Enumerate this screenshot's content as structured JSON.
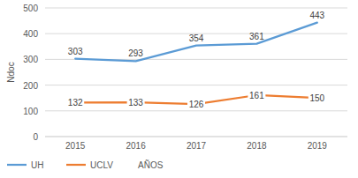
{
  "chart_data": {
    "type": "line",
    "categories": [
      "2015",
      "2016",
      "2017",
      "2018",
      "2019"
    ],
    "series": [
      {
        "name": "UH",
        "color": "#5b9bd5",
        "values": [
          303,
          293,
          354,
          361,
          443
        ]
      },
      {
        "name": "UCLV",
        "color": "#ed7d31",
        "values": [
          132,
          133,
          126,
          161,
          150
        ]
      }
    ],
    "y_label": "Ndoc",
    "x_label": "AÑOS",
    "ylim": [
      0,
      500
    ],
    "yticks": [
      0,
      100,
      200,
      300,
      400,
      500
    ],
    "grid": true,
    "legend": "bottom",
    "data_labels": true
  }
}
